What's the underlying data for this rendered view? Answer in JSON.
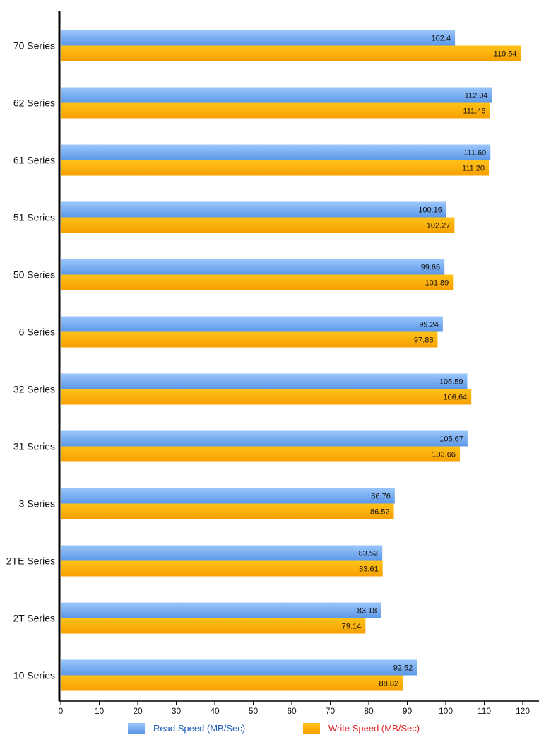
{
  "chart_data": {
    "type": "bar",
    "orientation": "horizontal",
    "categories": [
      "70 Series",
      "62 Series",
      "61 Series",
      "51 Series",
      "50 Series",
      "6 Series",
      "32 Series",
      "31 Series",
      "3 Series",
      "2TE Series",
      "2T Series",
      "10 Series"
    ],
    "series": [
      {
        "name": "Read Speed (MB/Sec)",
        "values": [
          102.4,
          112.04,
          111.6,
          100.16,
          99.66,
          99.24,
          105.59,
          105.67,
          86.76,
          83.52,
          83.18,
          92.52
        ],
        "labels": [
          "102.4",
          "112.04",
          "111.60",
          "100.16",
          "99.66",
          "99.24",
          "105.59",
          "105.67",
          "86.76",
          "83.52",
          "83.18",
          "92.52"
        ],
        "color": "#6fa8ee",
        "legend_text_color": "#1f5fb4"
      },
      {
        "name": "Write Speed (MB/Sec)",
        "values": [
          119.54,
          111.46,
          111.2,
          102.27,
          101.89,
          97.88,
          106.64,
          103.66,
          86.52,
          83.61,
          79.14,
          88.82
        ],
        "labels": [
          "119.54",
          "111.46",
          "111.20",
          "102.27",
          "101.89",
          "97.88",
          "106.64",
          "103.66",
          "86.52",
          "83.61",
          "79.14",
          "88.82"
        ],
        "color": "#ffb300",
        "legend_text_color": "#e0262a"
      }
    ],
    "xlim": [
      0,
      120
    ],
    "xticks": [
      0,
      10,
      20,
      30,
      40,
      50,
      60,
      70,
      80,
      90,
      100,
      110,
      120
    ],
    "grid": false,
    "legend": "bottom",
    "title": "",
    "xlabel": "",
    "ylabel": ""
  }
}
